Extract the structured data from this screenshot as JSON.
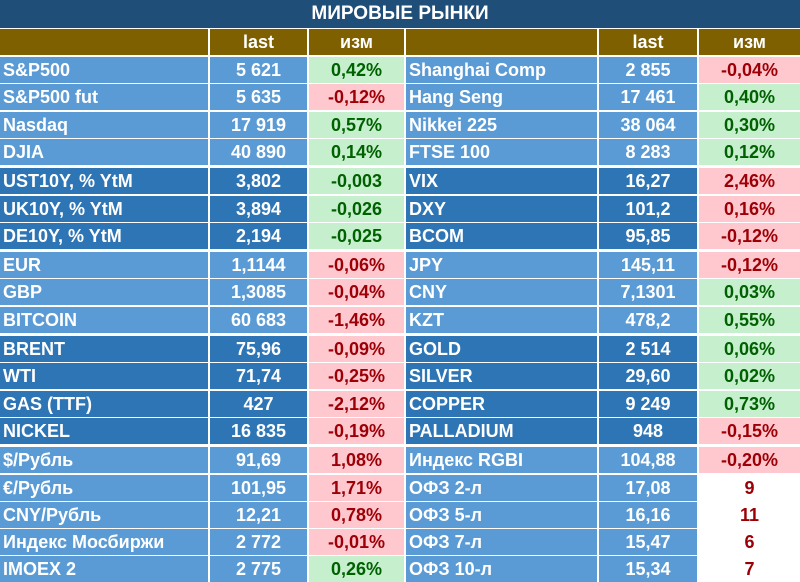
{
  "title": "МИРОВЫЕ РЫНКИ",
  "headers": {
    "last": "last",
    "chg": "изм"
  },
  "colors": {
    "light_group": "#5b9bd5",
    "dark_group": "#2e75b6",
    "header_bg": "#7f6000",
    "title_bg": "#1f4e79",
    "pos_bg": "#c6efce",
    "pos_text": "#006100",
    "neg_bg": "#ffc7ce",
    "neg_text": "#9c0006"
  },
  "groups": [
    {
      "shade": "light",
      "rows": [
        {
          "left": {
            "name": "S&P500",
            "last": "5 621",
            "chg": "0,42%",
            "dir": "pos"
          },
          "right": {
            "name": "Shanghai Comp",
            "last": "2 855",
            "chg": "-0,04%",
            "dir": "neg"
          }
        },
        {
          "left": {
            "name": "S&P500 fut",
            "last": "5 635",
            "chg": "-0,12%",
            "dir": "neg"
          },
          "right": {
            "name": "Hang Seng",
            "last": "17 461",
            "chg": "0,40%",
            "dir": "pos"
          }
        },
        {
          "left": {
            "name": "Nasdaq",
            "last": "17 919",
            "chg": "0,57%",
            "dir": "pos"
          },
          "right": {
            "name": "Nikkei 225",
            "last": "38 064",
            "chg": "0,30%",
            "dir": "pos"
          }
        },
        {
          "left": {
            "name": "DJIA",
            "last": "40 890",
            "chg": "0,14%",
            "dir": "pos"
          },
          "right": {
            "name": "FTSE 100",
            "last": "8 283",
            "chg": "0,12%",
            "dir": "pos"
          }
        }
      ]
    },
    {
      "shade": "dark",
      "rows": [
        {
          "left": {
            "name": "UST10Y, % YtM",
            "last": "3,802",
            "chg": "-0,003",
            "dir": "pos"
          },
          "right": {
            "name": "VIX",
            "last": "16,27",
            "chg": "2,46%",
            "dir": "neg"
          }
        },
        {
          "left": {
            "name": "UK10Y, % YtM",
            "last": "3,894",
            "chg": "-0,026",
            "dir": "pos"
          },
          "right": {
            "name": "DXY",
            "last": "101,2",
            "chg": "0,16%",
            "dir": "neg"
          }
        },
        {
          "left": {
            "name": "DE10Y, % YtM",
            "last": "2,194",
            "chg": "-0,025",
            "dir": "pos"
          },
          "right": {
            "name": "BCOM",
            "last": "95,85",
            "chg": "-0,12%",
            "dir": "neg"
          }
        }
      ]
    },
    {
      "shade": "light",
      "rows": [
        {
          "left": {
            "name": "EUR",
            "last": "1,1144",
            "chg": "-0,06%",
            "dir": "neg"
          },
          "right": {
            "name": "JPY",
            "last": "145,11",
            "chg": "-0,12%",
            "dir": "neg"
          }
        },
        {
          "left": {
            "name": "GBP",
            "last": "1,3085",
            "chg": "-0,04%",
            "dir": "neg"
          },
          "right": {
            "name": "CNY",
            "last": "7,1301",
            "chg": "0,03%",
            "dir": "pos"
          }
        },
        {
          "left": {
            "name": "BITCOIN",
            "last": "60 683",
            "chg": "-1,46%",
            "dir": "neg"
          },
          "right": {
            "name": "KZT",
            "last": "478,2",
            "chg": "0,55%",
            "dir": "pos"
          }
        }
      ]
    },
    {
      "shade": "dark",
      "rows": [
        {
          "left": {
            "name": "BRENT",
            "last": "75,96",
            "chg": "-0,09%",
            "dir": "neg"
          },
          "right": {
            "name": "GOLD",
            "last": "2 514",
            "chg": "0,06%",
            "dir": "pos"
          }
        },
        {
          "left": {
            "name": "WTI",
            "last": "71,74",
            "chg": "-0,25%",
            "dir": "neg"
          },
          "right": {
            "name": "SILVER",
            "last": "29,60",
            "chg": "0,02%",
            "dir": "pos"
          }
        },
        {
          "left": {
            "name": "GAS (TTF)",
            "last": "427",
            "chg": "-2,12%",
            "dir": "neg"
          },
          "right": {
            "name": "COPPER",
            "last": "9 249",
            "chg": "0,73%",
            "dir": "pos"
          }
        },
        {
          "left": {
            "name": "NICKEL",
            "last": "16 835",
            "chg": "-0,19%",
            "dir": "neg"
          },
          "right": {
            "name": "PALLADIUM",
            "last": "948",
            "chg": "-0,15%",
            "dir": "neg"
          }
        }
      ]
    },
    {
      "shade": "light",
      "rows": [
        {
          "left": {
            "name": "$/Рубль",
            "last": "91,69",
            "chg": "1,08%",
            "dir": "neg"
          },
          "right": {
            "name": "Индекс RGBI",
            "last": "104,88",
            "chg": "-0,20%",
            "dir": "neg"
          }
        },
        {
          "left": {
            "name": "€/Рубль",
            "last": "101,95",
            "chg": "1,71%",
            "dir": "neg"
          },
          "right": {
            "name": "ОФЗ 2-л",
            "last": "17,08",
            "chg": "9",
            "dir": "plain"
          }
        },
        {
          "left": {
            "name": "CNY/Рубль",
            "last": "12,21",
            "chg": "0,78%",
            "dir": "neg"
          },
          "right": {
            "name": "ОФЗ 5-л",
            "last": "16,16",
            "chg": "11",
            "dir": "plain"
          }
        },
        {
          "left": {
            "name": "Индекс Мосбиржи",
            "last": "2 772",
            "chg": "-0,01%",
            "dir": "neg"
          },
          "right": {
            "name": "ОФЗ 7-л",
            "last": "15,47",
            "chg": "6",
            "dir": "plain"
          }
        },
        {
          "left": {
            "name": "IMOEX 2",
            "last": "2 775",
            "chg": "0,26%",
            "dir": "pos"
          },
          "right": {
            "name": "ОФЗ 10-л",
            "last": "15,34",
            "chg": "7",
            "dir": "plain"
          }
        }
      ]
    }
  ]
}
